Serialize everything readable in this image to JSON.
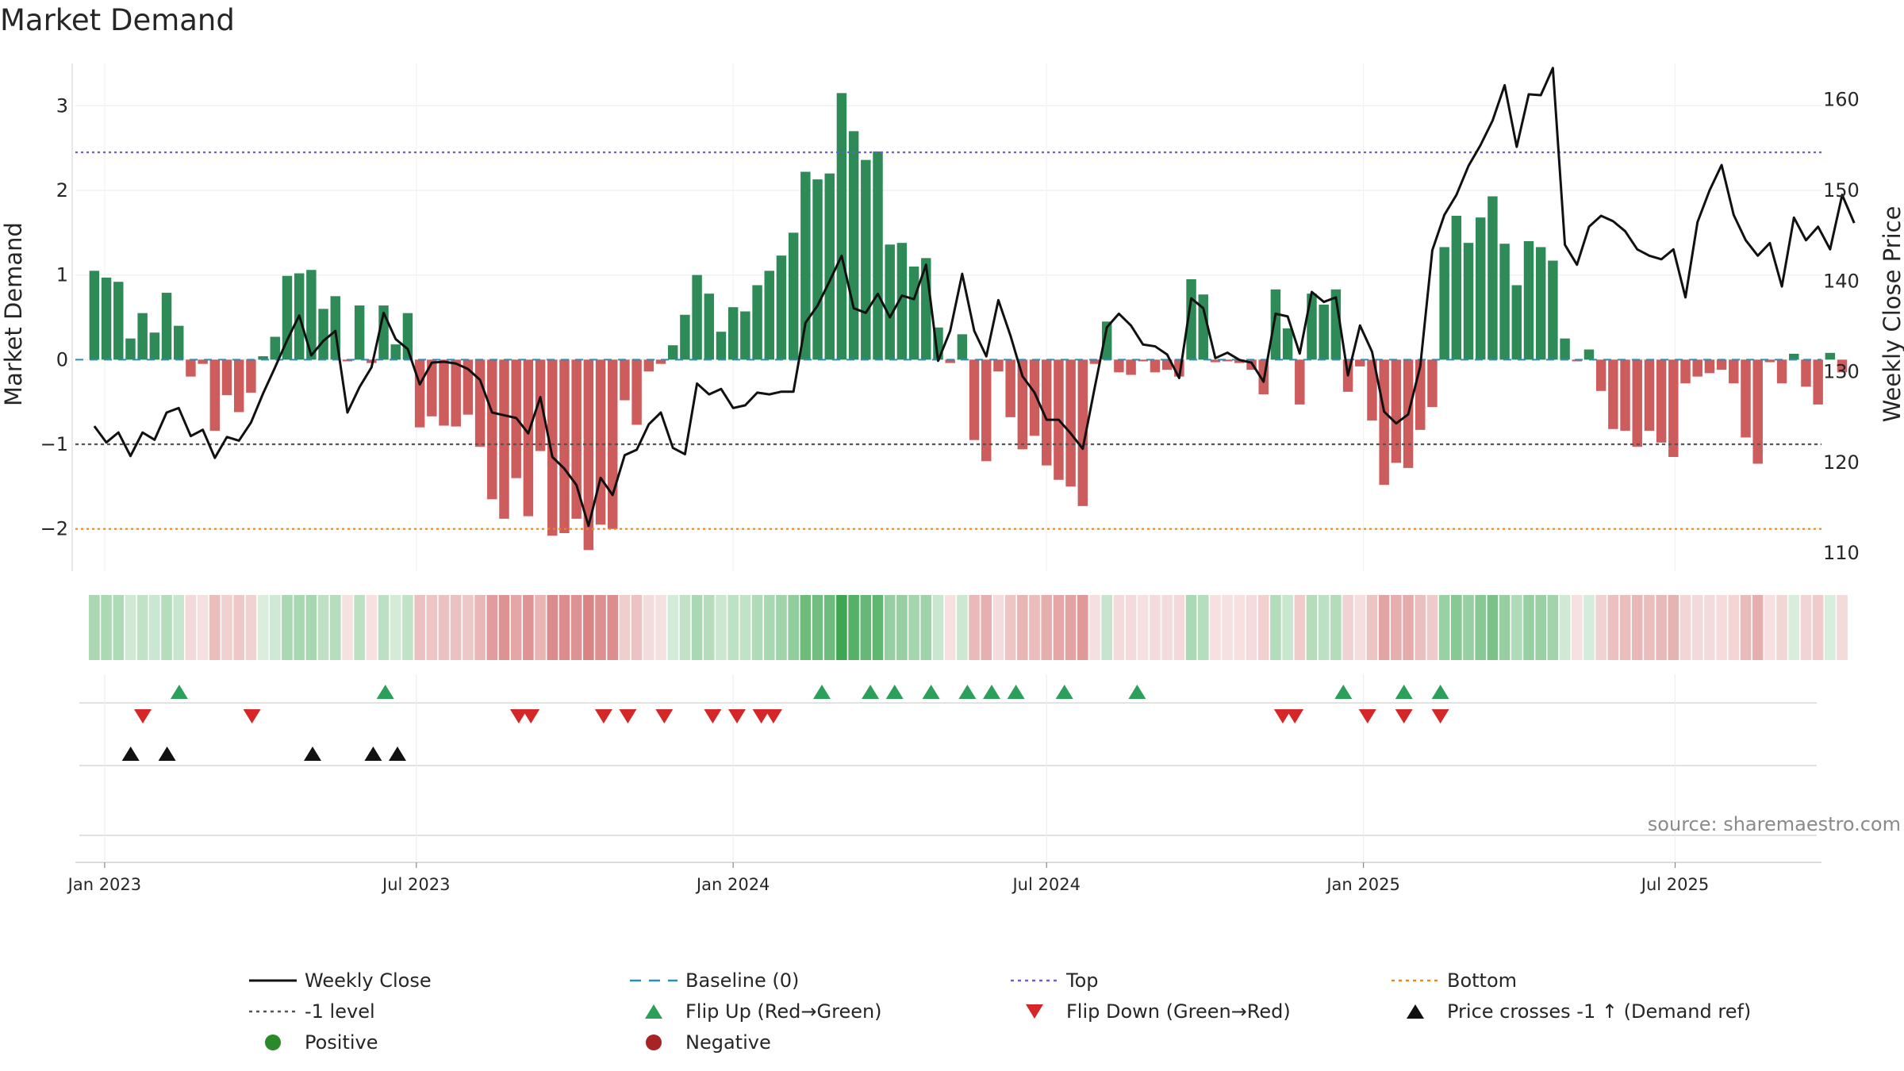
{
  "chart_data": {
    "type": "bar",
    "title": "Market Demand",
    "ylabel": "Market Demand",
    "y2label": "Weekly Close Price",
    "ylim": [
      -2.5,
      3.5
    ],
    "y2lim": [
      108,
      164
    ],
    "yticks": [
      -2,
      -1,
      0,
      1,
      2,
      3
    ],
    "y2ticks": [
      110,
      120,
      130,
      140,
      150,
      160
    ],
    "x_start": "2022-12-26",
    "week_days": 7,
    "x_range_days": [
      -11,
      1003
    ],
    "xticks": [
      {
        "label": "Jan 2023",
        "day": 6
      },
      {
        "label": "Jul 2023",
        "day": 187
      },
      {
        "label": "Jan 2024",
        "day": 371
      },
      {
        "label": "Jul 2024",
        "day": 553
      },
      {
        "label": "Jan 2025",
        "day": 737
      },
      {
        "label": "Jul 2025",
        "day": 918
      }
    ],
    "reference_lines": {
      "top": 2.45,
      "bottom": -2.0,
      "level": -1.0,
      "baseline": 0
    },
    "demand": [
      1.05,
      0.97,
      0.92,
      0.25,
      0.55,
      0.32,
      0.79,
      0.4,
      -0.2,
      -0.05,
      -0.84,
      -0.42,
      -0.62,
      -0.39,
      0.04,
      0.27,
      0.99,
      1.02,
      1.06,
      0.6,
      0.75,
      -0.02,
      0.64,
      -0.04,
      0.64,
      0.18,
      0.55,
      -0.8,
      -0.67,
      -0.78,
      -0.79,
      -0.65,
      -1.03,
      -1.65,
      -1.88,
      -1.4,
      -1.85,
      -1.08,
      -2.08,
      -2.05,
      -1.88,
      -2.25,
      -1.95,
      -2.0,
      -0.48,
      -0.77,
      -0.14,
      -0.05,
      0.17,
      0.53,
      1.0,
      0.78,
      0.33,
      0.62,
      0.57,
      0.88,
      1.05,
      1.23,
      1.5,
      2.22,
      2.13,
      2.2,
      3.15,
      2.7,
      2.36,
      2.46,
      1.36,
      1.38,
      1.1,
      1.2,
      0.38,
      -0.04,
      0.3,
      -0.95,
      -1.2,
      -0.14,
      -0.68,
      -1.06,
      -0.9,
      -1.25,
      -1.42,
      -1.5,
      -1.73,
      -0.05,
      0.45,
      -0.15,
      -0.18,
      -0.02,
      -0.15,
      -0.12,
      -0.2,
      0.95,
      0.77,
      -0.03,
      -0.02,
      -0.04,
      -0.12,
      -0.41,
      0.83,
      0.37,
      -0.53,
      0.78,
      0.65,
      0.83,
      -0.38,
      -0.08,
      -0.72,
      -1.48,
      -1.22,
      -1.28,
      -0.83,
      -0.56,
      1.33,
      1.7,
      1.38,
      1.68,
      1.93,
      1.37,
      0.88,
      1.4,
      1.33,
      1.17,
      0.25,
      -0.02,
      0.12,
      -0.37,
      -0.82,
      -0.84,
      -1.03,
      -0.84,
      -0.98,
      -1.15,
      -0.28,
      -0.2,
      -0.16,
      -0.12,
      -0.28,
      -0.92,
      -1.23,
      -0.03,
      -0.28,
      0.07,
      -0.32,
      -0.53,
      0.08,
      -0.15
    ],
    "close": [
      124.0,
      122.2,
      123.3,
      120.7,
      123.3,
      122.5,
      125.5,
      126.0,
      122.9,
      123.6,
      120.5,
      122.8,
      122.4,
      124.4,
      127.6,
      130.5,
      133.5,
      136.2,
      131.8,
      133.4,
      134.5,
      125.5,
      128.3,
      130.5,
      136.5,
      133.6,
      132.5,
      128.6,
      131.0,
      131.1,
      130.9,
      130.3,
      129.1,
      125.5,
      125.2,
      124.9,
      123.2,
      127.2,
      120.6,
      119.3,
      117.5,
      113.0,
      118.3,
      116.4,
      120.8,
      121.4,
      124.2,
      125.5,
      121.6,
      120.9,
      128.7,
      127.5,
      128.1,
      126.0,
      126.3,
      127.7,
      127.5,
      127.8,
      127.8,
      135.4,
      137.3,
      140.0,
      142.8,
      137.0,
      136.5,
      138.6,
      136.0,
      138.4,
      138.0,
      141.8,
      131.2,
      134.5,
      140.8,
      134.5,
      131.7,
      137.9,
      134.0,
      129.5,
      127.7,
      124.7,
      124.7,
      123.2,
      121.5,
      128.3,
      134.9,
      136.4,
      135.1,
      133.0,
      132.8,
      131.9,
      129.3,
      138.1,
      137.0,
      131.5,
      132.1,
      131.3,
      131.0,
      128.9,
      136.4,
      136.1,
      132.0,
      138.8,
      137.7,
      138.2,
      129.6,
      135.1,
      132.2,
      125.6,
      124.3,
      125.3,
      130.6,
      143.4,
      147.3,
      149.5,
      152.7,
      155.0,
      157.7,
      161.6,
      154.8,
      160.6,
      160.5,
      163.5,
      144.0,
      141.8,
      146.0,
      147.2,
      146.6,
      145.5,
      143.5,
      142.8,
      142.4,
      143.5,
      138.2,
      146.5,
      150.0,
      152.8,
      147.3,
      144.5,
      142.8,
      144.2,
      139.4,
      147.0,
      144.5,
      146.0,
      143.5,
      149.5,
      146.4
    ],
    "flip_up_weeks": [
      7,
      24,
      60,
      64,
      66,
      69,
      72,
      74,
      76,
      80,
      86,
      103,
      108,
      111
    ],
    "flip_down_weeks": [
      4,
      13,
      35,
      36,
      42,
      44,
      47,
      51,
      53,
      55,
      56,
      98,
      99,
      105,
      108,
      111
    ],
    "price_cross_weeks": [
      3,
      6,
      18,
      23,
      25
    ],
    "legend": [
      {
        "label": "Weekly Close",
        "symbol": "line",
        "color": "#111111"
      },
      {
        "label": "Baseline (0)",
        "symbol": "dash",
        "color": "#2b8cbe"
      },
      {
        "label": "Top",
        "symbol": "dot",
        "color": "#6a5fd6"
      },
      {
        "label": "Bottom",
        "symbol": "dot",
        "color": "#e88a1a"
      },
      {
        "label": "-1 level",
        "symbol": "dot",
        "color": "#555555"
      },
      {
        "label": "Flip Up (Red→Green)",
        "symbol": "tri-up",
        "color": "#2ca05a"
      },
      {
        "label": "Flip Down (Green→Red)",
        "symbol": "tri-down",
        "color": "#d62728"
      },
      {
        "label": "Price crosses -1 ↑ (Demand ref)",
        "symbol": "tri-up",
        "color": "#111111"
      },
      {
        "label": "Positive",
        "symbol": "circle",
        "color": "#2a8a2a"
      },
      {
        "label": "Negative",
        "symbol": "circle",
        "color": "#a82323"
      }
    ],
    "source": "source: sharemaestro.com",
    "colors": {
      "positive": "#2e8b57",
      "negative": "#cd5c5c",
      "flip_up": "#2ca05a",
      "flip_down": "#d62728",
      "cross": "#111111",
      "close": "#111111"
    }
  }
}
